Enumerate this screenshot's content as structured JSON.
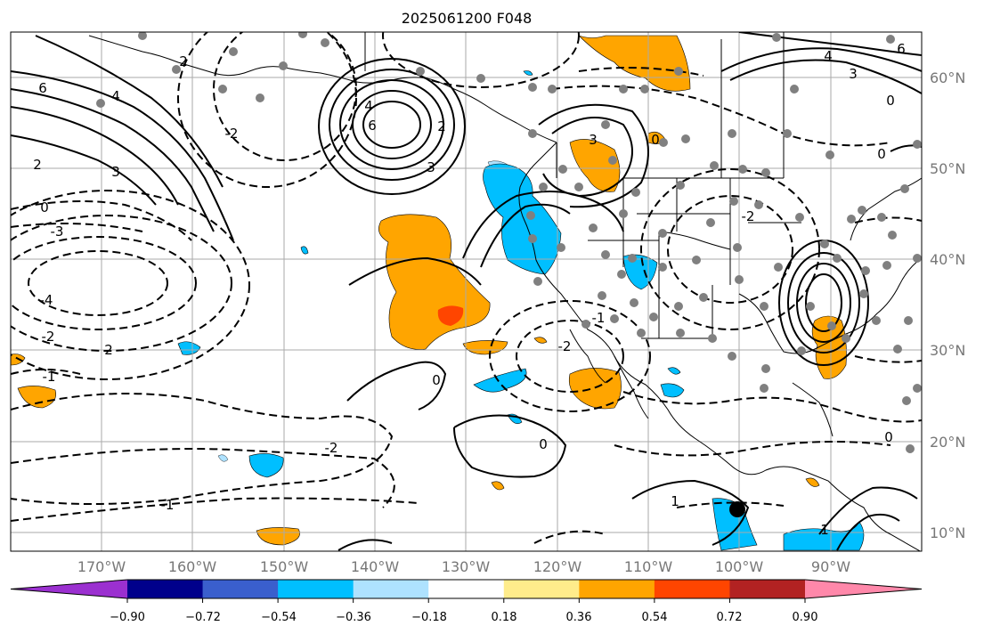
{
  "title": "2025061200 F048",
  "lat_labels": [
    "60°N",
    "50°N",
    "40°N",
    "30°N",
    "20°N",
    "10°N"
  ],
  "lon_labels": [
    "170°W",
    "160°W",
    "150°W",
    "140°W",
    "130°W",
    "120°W",
    "110°W",
    "100°W",
    "90°W"
  ],
  "colorbar": {
    "colors": [
      "#9b30d0",
      "#00008b",
      "#3a5fcd",
      "#00bfff",
      "#aee2ff",
      "#ffffff",
      "#ffec8b",
      "#ffa500",
      "#ff4500",
      "#b22222",
      "#ff88aa"
    ],
    "tick_labels": [
      "−0.90",
      "−0.72",
      "−0.54",
      "−0.36",
      "−0.18",
      "0.18",
      "0.36",
      "0.54",
      "0.72",
      "0.90"
    ]
  },
  "contour_labels": [
    {
      "text": "6"
    },
    {
      "text": "4"
    },
    {
      "text": "2"
    },
    {
      "text": "3"
    },
    {
      "text": "0"
    },
    {
      "text": "-3"
    },
    {
      "text": "-4"
    },
    {
      "text": "-2"
    },
    {
      "text": "2"
    },
    {
      "text": "-1"
    },
    {
      "text": "4"
    },
    {
      "text": "6"
    },
    {
      "text": "3"
    },
    {
      "text": "2"
    },
    {
      "text": "4"
    },
    {
      "text": "6"
    },
    {
      "text": "3"
    },
    {
      "text": "0"
    },
    {
      "text": "2"
    },
    {
      "text": "-2"
    },
    {
      "text": "3"
    },
    {
      "text": "-2"
    },
    {
      "text": "0"
    },
    {
      "text": "0"
    },
    {
      "text": "-2"
    },
    {
      "text": "-1"
    },
    {
      "text": "0"
    },
    {
      "text": "-2"
    },
    {
      "text": "-1"
    },
    {
      "text": "1"
    },
    {
      "text": "0"
    },
    {
      "text": "0"
    },
    {
      "text": "1"
    }
  ],
  "colors": {
    "positive_fill_light": "#ffa500",
    "positive_fill_strong": "#ff4500",
    "negative_fill": "#00bfff",
    "grid": "#aaaaaa",
    "station_dot": "#808080"
  }
}
